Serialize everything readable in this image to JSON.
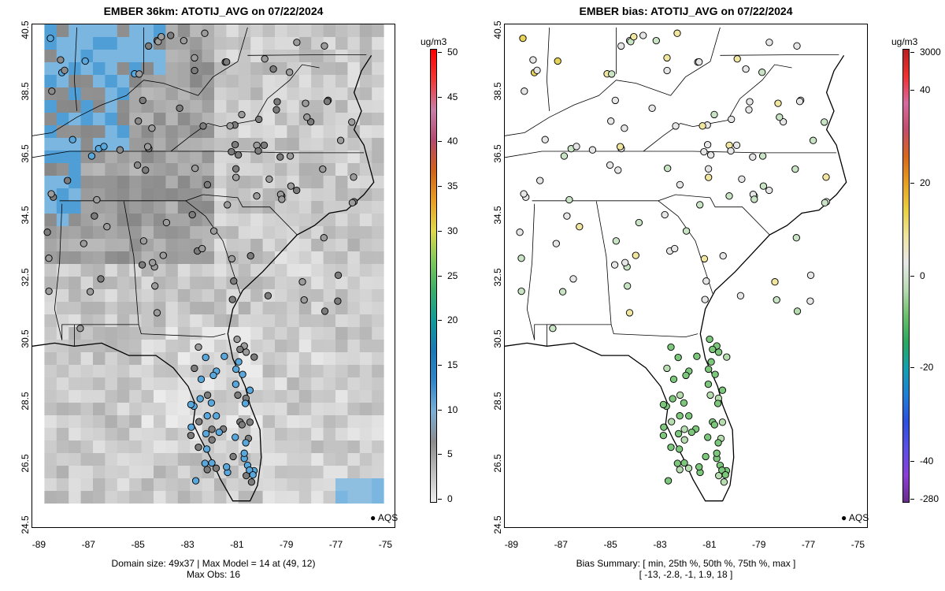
{
  "left_panel": {
    "title": "EMBER 36km: ATOTIJ_AVG on 07/22/2024",
    "caption_line1": "Domain size: 49x37 | Max Model = 14 at (49, 12)",
    "caption_line2": "Max Obs: 16",
    "legend_label": "AQS",
    "colorbar": {
      "unit": "ug/m3",
      "ticks": [
        "0",
        "5",
        "10",
        "15",
        "20",
        "25",
        "30",
        "35",
        "40",
        "45",
        "50"
      ],
      "colors": [
        "#eeeeee",
        "#bdbdbd",
        "#8c8c8c",
        "#7aaed6",
        "#2f86c8",
        "#1a78b6",
        "#109a9a",
        "#3aae6a",
        "#7fc85a",
        "#e0d84a",
        "#e89d22",
        "#d0621a",
        "#b3496e",
        "#c77ea7",
        "#f03838",
        "#ff0000"
      ]
    }
  },
  "right_panel": {
    "title": "EMBER bias: ATOTIJ_AVG on 07/22/2024",
    "caption_line1": "Bias Summary: [ min, 25th %, 50th %, 75th %, max ]",
    "caption_line2": "[ -13,   -2.8,   -1,   1.9,   18 ]",
    "legend_label": "AQS",
    "colorbar": {
      "unit": "ug/m3",
      "ticks": [
        "-280",
        "-40",
        "-20",
        "0",
        "20",
        "40",
        "3000"
      ],
      "colors": [
        "#6a2c8c",
        "#8b3fd6",
        "#5a4fe6",
        "#2e4fe0",
        "#1e7fd8",
        "#12a0b0",
        "#2aa860",
        "#6cc06a",
        "#b8dcb4",
        "#e8e8e8",
        "#f0e4a0",
        "#e9cf3e",
        "#e6a020",
        "#d8671c",
        "#c34e6c",
        "#d66aa0",
        "#f03030",
        "#b82020"
      ]
    }
  },
  "axes": {
    "x_ticks": [
      "-89",
      "-87",
      "-85",
      "-83",
      "-81",
      "-79",
      "-77",
      "-75"
    ],
    "y_ticks": [
      "24.5",
      "26.5",
      "28.5",
      "30.5",
      "32.5",
      "34.5",
      "36.5",
      "38.5",
      "40.5"
    ],
    "x_range": [
      -89.3,
      -74.6
    ],
    "y_range": [
      24.4,
      40.7
    ]
  },
  "colors": {
    "land_cell_gray": "#b0b0b0",
    "light_cell_gray": "#dcdcdc",
    "blue_cell": "#6fb0dc",
    "border": "#000000"
  }
}
